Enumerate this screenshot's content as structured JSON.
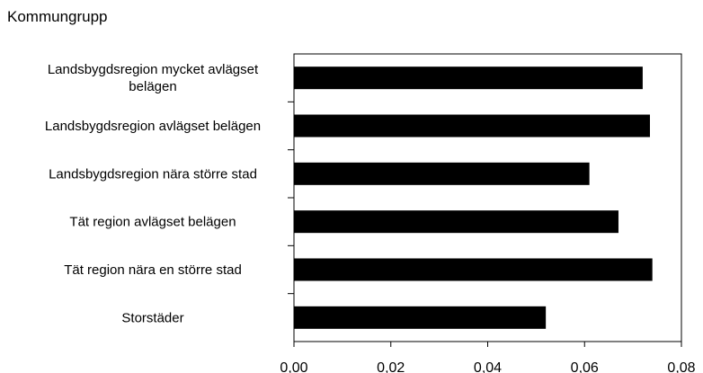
{
  "heading": "Kommungrupp",
  "chart_data": {
    "type": "bar",
    "orientation": "horizontal",
    "categories": [
      "Landsbygdsregion mycket avlägset belägen",
      "Landsbygdsregion avlägset belägen",
      "Landsbygdsregion nära större stad",
      "Tät region avlägset belägen",
      "Tät region nära en större stad",
      "Storstäder"
    ],
    "category_lines": [
      [
        "Landsbygdsregion mycket avlägset",
        "belägen"
      ],
      [
        "Landsbygdsregion avlägset belägen"
      ],
      [
        "Landsbygdsregion nära större stad"
      ],
      [
        "Tät region avlägset belägen"
      ],
      [
        "Tät region nära en större stad"
      ],
      [
        "Storstäder"
      ]
    ],
    "values": [
      0.072,
      0.0735,
      0.061,
      0.067,
      0.074,
      0.052
    ],
    "xlim": [
      0,
      0.08
    ],
    "xticks": [
      0,
      0.02,
      0.04,
      0.06,
      0.08
    ],
    "xtick_labels": [
      "0,00",
      "0,02",
      "0,04",
      "0,06",
      "0,08"
    ],
    "title": "",
    "xlabel": "",
    "ylabel": "",
    "grid": false,
    "bar_color": "#000000"
  }
}
